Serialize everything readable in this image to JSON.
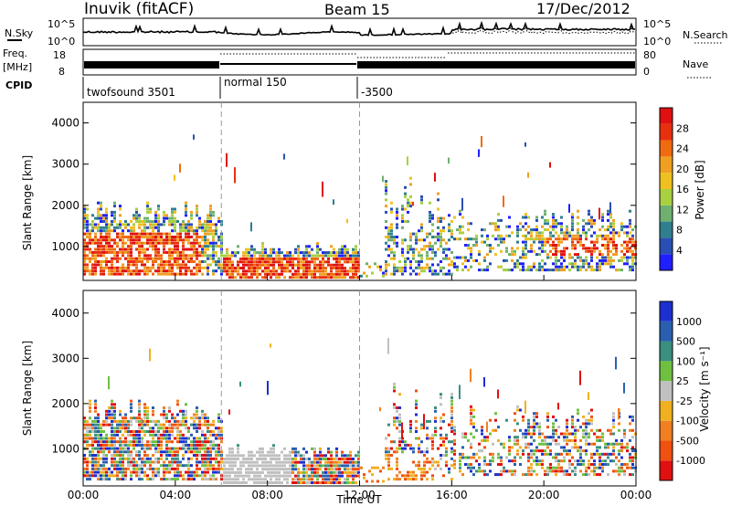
{
  "header": {
    "station": "Inuvik (fitACF)",
    "beam": "Beam 15",
    "date": "17/Dec/2012"
  },
  "panels": {
    "nsky": {
      "label": "N.Sky",
      "ticks": [
        "10^5",
        "10^0"
      ],
      "right_label": "N.Search",
      "right_ticks": [
        "10^5",
        "10^0"
      ]
    },
    "freq": {
      "label_top": "Freq.",
      "label_bottom": "[MHz]",
      "ticks": [
        "18",
        "8"
      ],
      "right_label": "Nave",
      "right_ticks": [
        "80",
        "0"
      ]
    },
    "cpid": {
      "label": "CPID",
      "segments": [
        "twofsound 3501",
        "normal 150",
        "-3500"
      ]
    }
  },
  "axes": {
    "ylabel": "Slant Range [km]",
    "xlabel": "Time UT",
    "yticks": [
      "1000",
      "2000",
      "3000",
      "4000"
    ],
    "xticks": [
      "00:00",
      "04:00",
      "08:00",
      "12:00",
      "16:00",
      "20:00",
      "00:00"
    ]
  },
  "colorbars": {
    "power": {
      "label": "Power [dB]",
      "ticks": [
        "4",
        "8",
        "12",
        "16",
        "20",
        "24",
        "28"
      ],
      "colors": [
        "#1f1fff",
        "#2a4fb4",
        "#2f7f8f",
        "#6fb070",
        "#a8d040",
        "#f0c020",
        "#f0a020",
        "#f06a10",
        "#e83010",
        "#e01010"
      ]
    },
    "velocity": {
      "label": "Velocity [m s⁻¹]",
      "ticks": [
        "1000",
        "500",
        "100",
        "25",
        "-25",
        "-100",
        "-500",
        "-1000"
      ],
      "colors": [
        "#1e2fd0",
        "#2a5fb0",
        "#3a8f80",
        "#6fc040",
        "#c0c0c0",
        "#f0b020",
        "#f08020",
        "#f05010",
        "#e01010"
      ]
    }
  },
  "chart_data": {
    "type": "heatmap",
    "x_range_hours": [
      0,
      24
    ],
    "y_range_km": [
      180,
      4500
    ],
    "vertical_markers_hours": [
      6,
      12
    ],
    "cpid_changes_hours": [
      6,
      12
    ]
  }
}
